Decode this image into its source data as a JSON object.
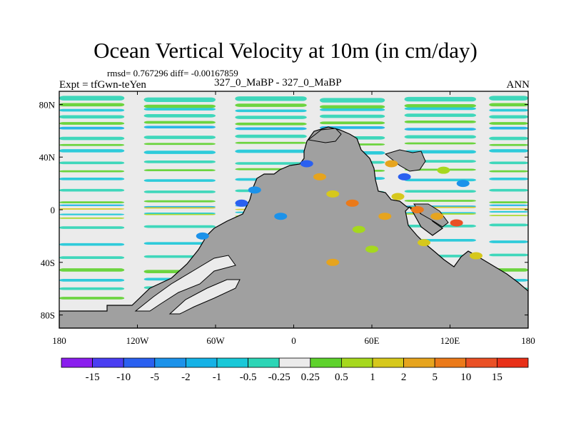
{
  "chart_data": {
    "type": "heatmap",
    "title": "Ocean Vertical Velocity at 10m (in cm/day)",
    "stats_line": "rmsd= 0.767296  diff= -0.00167859",
    "experiment": "Expt = tfGwn-teYen",
    "case_label": "327_0_MaBP - 327_0_MaBP",
    "season": "ANN",
    "x_range": [
      -180,
      180
    ],
    "y_range": [
      -90,
      90
    ],
    "x_ticks": [
      {
        "value": -180,
        "label": "180"
      },
      {
        "value": -120,
        "label": "120W"
      },
      {
        "value": -60,
        "label": "60W"
      },
      {
        "value": 0,
        "label": "0"
      },
      {
        "value": 60,
        "label": "60E"
      },
      {
        "value": 120,
        "label": "120E"
      },
      {
        "value": 180,
        "label": "180"
      }
    ],
    "y_ticks": [
      {
        "value": 80,
        "label": "80N"
      },
      {
        "value": 40,
        "label": "40N"
      },
      {
        "value": 0,
        "label": "0"
      },
      {
        "value": -40,
        "label": "40S"
      },
      {
        "value": -80,
        "label": "80S"
      }
    ],
    "colorbar": {
      "labels": [
        "-15",
        "-10",
        "-5",
        "-2",
        "-1",
        "-0.5",
        "-0.25",
        "0.25",
        "0.5",
        "1",
        "2",
        "5",
        "10",
        "15"
      ],
      "colors": [
        "#8a1eee",
        "#4a3ef2",
        "#2a60f0",
        "#1c92ea",
        "#15b2e6",
        "#19c8d8",
        "#2cd5b6",
        "#ebebeb",
        "#5ed22c",
        "#a6d81e",
        "#d6c81c",
        "#e6a41e",
        "#eb7a1a",
        "#ea5025",
        "#e83018"
      ]
    },
    "land_color": "#a0a0a0",
    "ocean_neutral_color": "#ebebeb"
  }
}
